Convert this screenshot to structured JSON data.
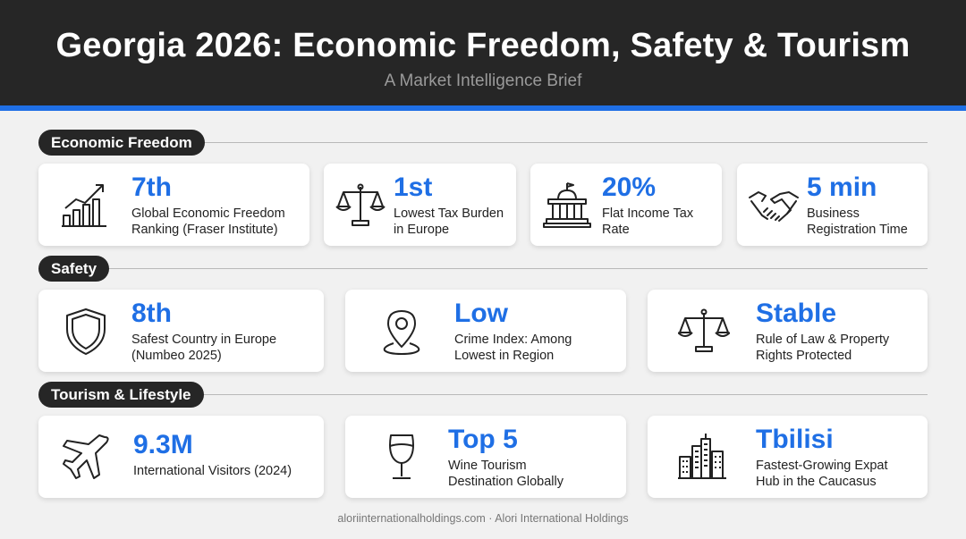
{
  "header": {
    "title": "Georgia 2026: Economic Freedom, Safety & Tourism",
    "subtitle": "A Market Intelligence Brief"
  },
  "sections": [
    {
      "title": "Economic Freedom",
      "cards": [
        {
          "icon": "bar-chart-growth-icon",
          "value": "7th",
          "label_line1": "Global Economic Freedom",
          "label_line2": "Ranking (Fraser Institute)"
        },
        {
          "icon": "scales-icon",
          "value": "1st",
          "label_line1": "Lowest Tax Burden",
          "label_line2": "in Europe"
        },
        {
          "icon": "government-building-icon",
          "value": "20%",
          "label_line1": "Flat Income Tax",
          "label_line2": "Rate"
        },
        {
          "icon": "handshake-icon",
          "value": "5 min",
          "label_line1": "Business",
          "label_line2": "Registration Time"
        }
      ]
    },
    {
      "title": "Safety",
      "cards": [
        {
          "icon": "shield-icon",
          "value": "8th",
          "label_line1": "Safest Country in Europe",
          "label_line2": "(Numbeo 2025)"
        },
        {
          "icon": "map-pin-icon",
          "value": "Low",
          "label_line1": "Crime Index: Among",
          "label_line2": "Lowest in Region"
        },
        {
          "icon": "scales-of-justice-icon",
          "value": "Stable",
          "label_line1": "Rule of Law & Property",
          "label_line2": "Rights Protected"
        }
      ]
    },
    {
      "title": "Tourism & Lifestyle",
      "cards": [
        {
          "icon": "airplane-icon",
          "value": "9.3M",
          "label_line1": "International Visitors (2024)",
          "label_line2": ""
        },
        {
          "icon": "wine-glass-icon",
          "value": "Top 5",
          "label_line1": "Wine Tourism",
          "label_line2": "Destination Globally"
        },
        {
          "icon": "city-skyline-icon",
          "value": "Tbilisi",
          "label_line1": "Fastest-Growing Expat",
          "label_line2": "Hub in the Caucasus"
        }
      ]
    }
  ],
  "footer": "aloriinternationalholdings.com · Alori International Holdings",
  "colors": {
    "accent": "#1f6fe5",
    "header_bg": "#262626",
    "page_bg": "#f1f1f1"
  }
}
